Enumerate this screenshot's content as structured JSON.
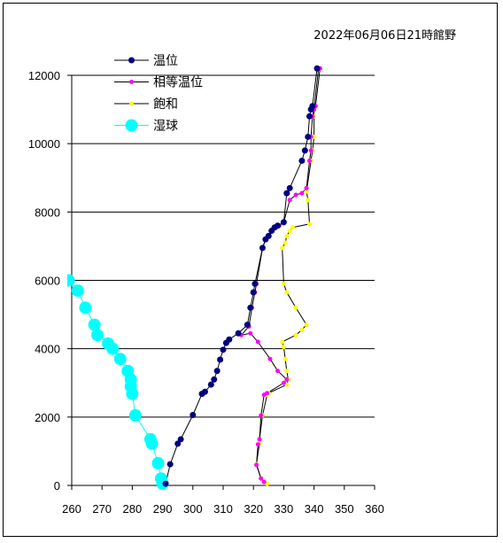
{
  "chart_data": {
    "type": "line",
    "title": "2022年06月06日21時館野",
    "xlabel": "",
    "ylabel": "",
    "xlim": [
      260,
      360
    ],
    "ylim": [
      0,
      12000
    ],
    "xticks": [
      260,
      270,
      280,
      290,
      300,
      310,
      320,
      330,
      340,
      350,
      360
    ],
    "yticks": [
      0,
      2000,
      4000,
      6000,
      8000,
      10000,
      12000
    ],
    "grid": "horizontal",
    "legend": "top-left",
    "series": [
      {
        "name": "温位",
        "color": "#000080",
        "line_color": "#000000",
        "marker": "circle",
        "marker_size": 3.5,
        "points": [
          [
            291,
            50
          ],
          [
            292.5,
            620
          ],
          [
            295,
            1220
          ],
          [
            296,
            1350
          ],
          [
            300,
            2060
          ],
          [
            303,
            2680
          ],
          [
            304,
            2740
          ],
          [
            306,
            2950
          ],
          [
            307,
            3100
          ],
          [
            308,
            3350
          ],
          [
            309,
            3680
          ],
          [
            310,
            3970
          ],
          [
            311,
            4170
          ],
          [
            312,
            4270
          ],
          [
            315,
            4450
          ],
          [
            318,
            4700
          ],
          [
            319,
            5200
          ],
          [
            320,
            5650
          ],
          [
            320.5,
            5900
          ],
          [
            323,
            6950
          ],
          [
            324,
            7200
          ],
          [
            325,
            7300
          ],
          [
            326,
            7450
          ],
          [
            327,
            7550
          ],
          [
            328,
            7600
          ],
          [
            330,
            7700
          ],
          [
            331,
            8550
          ],
          [
            332,
            8700
          ],
          [
            336,
            9500
          ],
          [
            337,
            9800
          ],
          [
            338,
            10200
          ],
          [
            338.5,
            10800
          ],
          [
            339,
            11000
          ],
          [
            339.5,
            11100
          ],
          [
            341,
            12200
          ]
        ]
      },
      {
        "name": "相等温位",
        "color": "#ff00ff",
        "line_color": "#000000",
        "marker": "circle",
        "marker_size": 2.5,
        "points": [
          [
            323.5,
            100
          ],
          [
            322.5,
            200
          ],
          [
            321,
            600
          ],
          [
            321.5,
            1200
          ],
          [
            322,
            1350
          ],
          [
            322.5,
            2050
          ],
          [
            323.5,
            2650
          ],
          [
            324.5,
            2700
          ],
          [
            330,
            3000
          ],
          [
            331,
            3100
          ],
          [
            328,
            3350
          ],
          [
            325.5,
            3700
          ],
          [
            321.5,
            4200
          ],
          [
            319,
            4450
          ],
          [
            316,
            4400
          ],
          [
            318.5,
            4650
          ],
          [
            319.5,
            5200
          ],
          [
            320.5,
            5650
          ],
          [
            321,
            5900
          ],
          [
            323,
            6950
          ],
          [
            324,
            7200
          ],
          [
            325,
            7300
          ],
          [
            326,
            7450
          ],
          [
            327,
            7550
          ],
          [
            328.5,
            7600
          ],
          [
            330,
            7700
          ],
          [
            332,
            8350
          ],
          [
            334,
            8500
          ],
          [
            336,
            8550
          ],
          [
            337.5,
            8700
          ],
          [
            338.5,
            9500
          ],
          [
            339,
            9800
          ],
          [
            339,
            10200
          ],
          [
            339.5,
            10800
          ],
          [
            340,
            11000
          ],
          [
            340.5,
            11100
          ],
          [
            342,
            12200
          ]
        ]
      },
      {
        "name": "飽和",
        "color": "#ffff00",
        "line_color": "#000000",
        "marker": "circle",
        "marker_size": 2.5,
        "points": [
          [
            324.5,
            50
          ],
          [
            322.5,
            200
          ],
          [
            321,
            620
          ],
          [
            322,
            1230
          ],
          [
            322,
            1350
          ],
          [
            323,
            2050
          ],
          [
            324.5,
            2650
          ],
          [
            325,
            2700
          ],
          [
            331,
            2950
          ],
          [
            331.5,
            3100
          ],
          [
            331,
            3350
          ],
          [
            330.5,
            3700
          ],
          [
            330,
            4050
          ],
          [
            329.5,
            4200
          ],
          [
            334,
            4400
          ],
          [
            336,
            4550
          ],
          [
            337.5,
            4700
          ],
          [
            334,
            5200
          ],
          [
            331,
            5650
          ],
          [
            330,
            5900
          ],
          [
            329.5,
            6950
          ],
          [
            330.5,
            7100
          ],
          [
            331,
            7300
          ],
          [
            332,
            7450
          ],
          [
            333,
            7550
          ],
          [
            338.5,
            7650
          ],
          [
            338,
            8350
          ],
          [
            337.5,
            8600
          ],
          [
            339,
            9500
          ],
          [
            339.5,
            9800
          ],
          [
            340,
            10200
          ],
          [
            340,
            10800
          ],
          [
            340,
            11000
          ],
          [
            341.5,
            12200
          ]
        ]
      },
      {
        "name": "湿球",
        "color": "#00ffff",
        "line_color": "#00ffff",
        "marker": "circle",
        "marker_size": 7,
        "points": [
          [
            290,
            50
          ],
          [
            289.5,
            200
          ],
          [
            288.5,
            650
          ],
          [
            286.5,
            1220
          ],
          [
            286,
            1350
          ],
          [
            281,
            2050
          ],
          [
            280,
            2680
          ],
          [
            279.5,
            2900
          ],
          [
            279.5,
            3100
          ],
          [
            278.5,
            3350
          ],
          [
            276,
            3700
          ],
          [
            273.5,
            4000
          ],
          [
            272,
            4150
          ],
          [
            268.5,
            4400
          ],
          [
            267.5,
            4700
          ],
          [
            264.5,
            5200
          ],
          [
            262,
            5700
          ],
          [
            259,
            6000
          ]
        ]
      }
    ]
  }
}
